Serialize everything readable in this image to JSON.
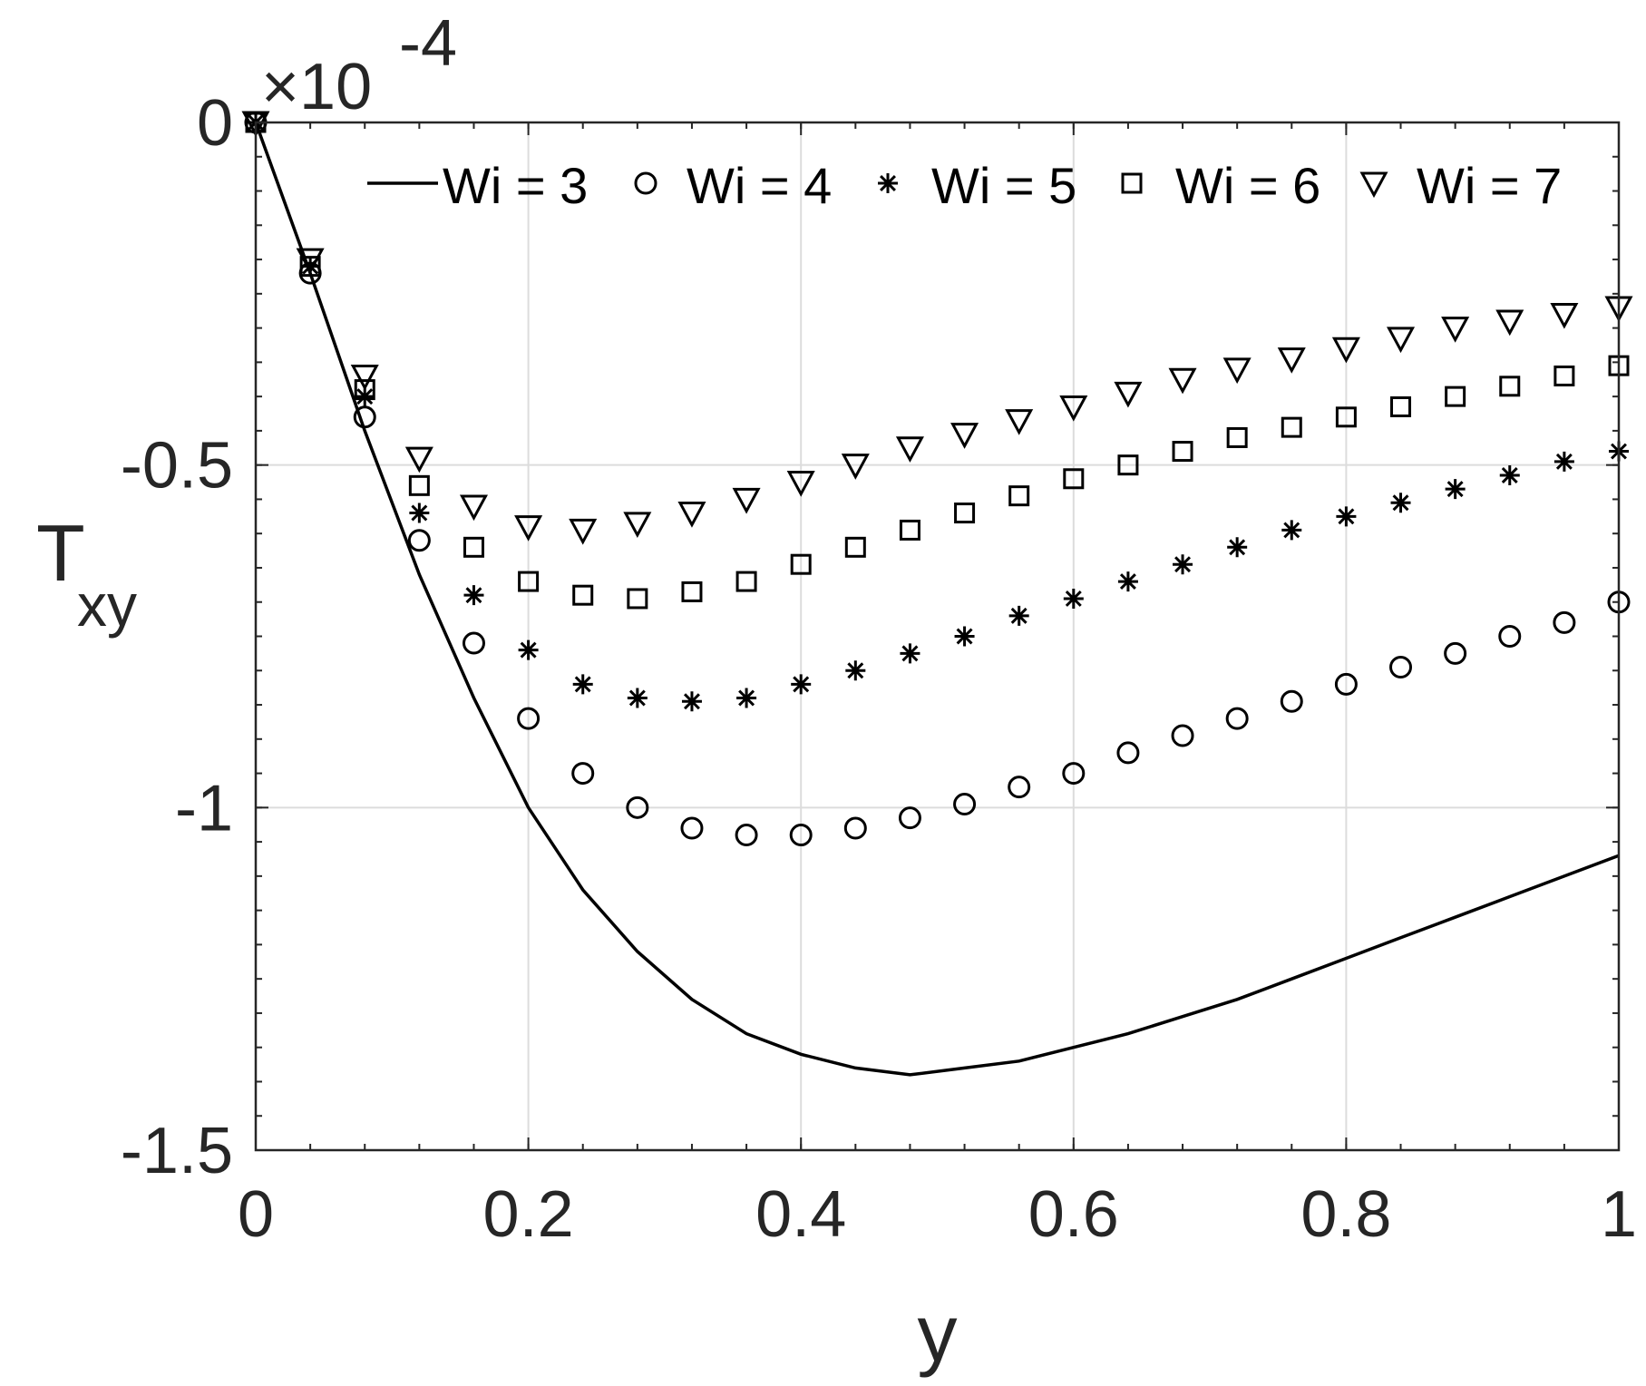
{
  "chart_data": {
    "type": "scatter",
    "xlabel": "y",
    "ylabel_main": "T",
    "ylabel_sub": "xy",
    "exponent_prefix": "×10",
    "exponent_power": "-4",
    "xlim": [
      0,
      1
    ],
    "ylim": [
      -1.5,
      0
    ],
    "xticks": [
      "0",
      "0.2",
      "0.4",
      "0.6",
      "0.8",
      "1"
    ],
    "yticks": [
      "0",
      "-0.5",
      "-1",
      "-1.5"
    ],
    "grid": true,
    "legend_position": "top",
    "series": [
      {
        "name": "Wi = 3",
        "marker": "line",
        "x": [
          0,
          0.04,
          0.08,
          0.12,
          0.16,
          0.2,
          0.24,
          0.28,
          0.32,
          0.36,
          0.4,
          0.44,
          0.48,
          0.52,
          0.56,
          0.6,
          0.64,
          0.68,
          0.72,
          0.76,
          0.8,
          0.84,
          0.88,
          0.92,
          0.96,
          1.0
        ],
        "y": [
          0,
          -0.22,
          -0.45,
          -0.66,
          -0.84,
          -1.0,
          -1.12,
          -1.21,
          -1.28,
          -1.33,
          -1.36,
          -1.38,
          -1.39,
          -1.38,
          -1.37,
          -1.35,
          -1.33,
          -1.305,
          -1.28,
          -1.25,
          -1.22,
          -1.19,
          -1.16,
          -1.13,
          -1.1,
          -1.07
        ]
      },
      {
        "name": "Wi = 4",
        "marker": "circle",
        "x": [
          0,
          0.04,
          0.08,
          0.12,
          0.16,
          0.2,
          0.24,
          0.28,
          0.32,
          0.36,
          0.4,
          0.44,
          0.48,
          0.52,
          0.56,
          0.6,
          0.64,
          0.68,
          0.72,
          0.76,
          0.8,
          0.84,
          0.88,
          0.92,
          0.96,
          1.0
        ],
        "y": [
          0,
          -0.22,
          -0.43,
          -0.61,
          -0.76,
          -0.87,
          -0.95,
          -1.0,
          -1.03,
          -1.04,
          -1.04,
          -1.03,
          -1.015,
          -0.995,
          -0.97,
          -0.95,
          -0.92,
          -0.895,
          -0.87,
          -0.845,
          -0.82,
          -0.795,
          -0.775,
          -0.75,
          -0.73,
          -0.7
        ]
      },
      {
        "name": "Wi = 5",
        "marker": "asterisk",
        "x": [
          0,
          0.04,
          0.08,
          0.12,
          0.16,
          0.2,
          0.24,
          0.28,
          0.32,
          0.36,
          0.4,
          0.44,
          0.48,
          0.52,
          0.56,
          0.6,
          0.64,
          0.68,
          0.72,
          0.76,
          0.8,
          0.84,
          0.88,
          0.92,
          0.96,
          1.0
        ],
        "y": [
          0,
          -0.21,
          -0.4,
          -0.57,
          -0.69,
          -0.77,
          -0.82,
          -0.84,
          -0.845,
          -0.84,
          -0.82,
          -0.8,
          -0.775,
          -0.75,
          -0.72,
          -0.695,
          -0.67,
          -0.645,
          -0.62,
          -0.595,
          -0.575,
          -0.555,
          -0.535,
          -0.515,
          -0.495,
          -0.48
        ]
      },
      {
        "name": "Wi = 6",
        "marker": "square",
        "x": [
          0,
          0.04,
          0.08,
          0.12,
          0.16,
          0.2,
          0.24,
          0.28,
          0.32,
          0.36,
          0.4,
          0.44,
          0.48,
          0.52,
          0.56,
          0.6,
          0.64,
          0.68,
          0.72,
          0.76,
          0.8,
          0.84,
          0.88,
          0.92,
          0.96,
          1.0
        ],
        "y": [
          0,
          -0.21,
          -0.39,
          -0.53,
          -0.62,
          -0.67,
          -0.69,
          -0.695,
          -0.685,
          -0.67,
          -0.645,
          -0.62,
          -0.595,
          -0.57,
          -0.545,
          -0.52,
          -0.5,
          -0.48,
          -0.46,
          -0.445,
          -0.43,
          -0.415,
          -0.4,
          -0.385,
          -0.37,
          -0.355
        ]
      },
      {
        "name": "Wi = 7",
        "marker": "triangle-down",
        "x": [
          0,
          0.04,
          0.08,
          0.12,
          0.16,
          0.2,
          0.24,
          0.28,
          0.32,
          0.36,
          0.4,
          0.44,
          0.48,
          0.52,
          0.56,
          0.6,
          0.64,
          0.68,
          0.72,
          0.76,
          0.8,
          0.84,
          0.88,
          0.92,
          0.96,
          1.0
        ],
        "y": [
          0,
          -0.2,
          -0.37,
          -0.49,
          -0.56,
          -0.59,
          -0.595,
          -0.585,
          -0.57,
          -0.55,
          -0.525,
          -0.5,
          -0.475,
          -0.455,
          -0.435,
          -0.415,
          -0.395,
          -0.375,
          -0.36,
          -0.345,
          -0.33,
          -0.315,
          -0.3,
          -0.29,
          -0.28,
          -0.27
        ]
      }
    ]
  }
}
